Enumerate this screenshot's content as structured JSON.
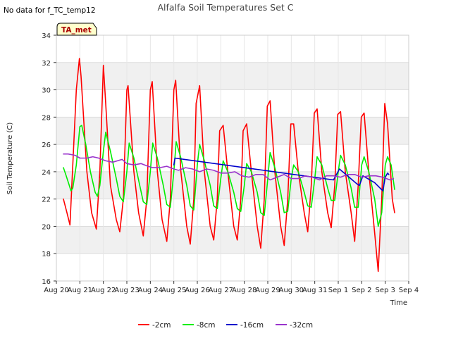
{
  "no_data_text": "No data for f_TC_temp12",
  "tag_label": "TA_met",
  "chart_data": {
    "type": "line",
    "title": "Alfalfa Soil Temperatures Set C",
    "xlabel": "Time",
    "ylabel": "Soil Temperature (C)",
    "xlim": [
      0,
      15
    ],
    "ylim": [
      16,
      34
    ],
    "grid": true,
    "legend_position": "bottom",
    "x_tick_values": [
      0,
      1,
      2,
      3,
      4,
      5,
      6,
      7,
      8,
      9,
      10,
      11,
      12,
      13,
      14,
      15
    ],
    "x_tick_labels": [
      "Aug 20",
      "Aug 21",
      "Aug 22",
      "Aug 23",
      "Aug 24",
      "Aug 25",
      "Aug 26",
      "Aug 27",
      "Aug 28",
      "Aug 29",
      "Aug 30",
      "Aug 31",
      "Sep 1",
      "Sep 2",
      "Sep 3",
      "Sep 4"
    ],
    "y_ticks": [
      16,
      18,
      20,
      22,
      24,
      26,
      28,
      30,
      32,
      34
    ],
    "series": [
      {
        "name": "-2cm",
        "color": "#ff0000",
        "x": [
          0.3,
          0.45,
          0.58,
          0.85,
          0.98,
          1.05,
          1.3,
          1.5,
          1.7,
          1.85,
          2.0,
          2.1,
          2.3,
          2.55,
          2.7,
          2.85,
          3.0,
          3.05,
          3.3,
          3.5,
          3.7,
          3.85,
          4.0,
          4.08,
          4.3,
          4.5,
          4.7,
          4.85,
          5.0,
          5.08,
          5.3,
          5.55,
          5.7,
          5.85,
          5.95,
          6.1,
          6.3,
          6.55,
          6.7,
          6.85,
          6.95,
          7.1,
          7.3,
          7.55,
          7.7,
          7.85,
          7.95,
          8.1,
          8.3,
          8.55,
          8.7,
          8.85,
          8.98,
          9.1,
          9.3,
          9.55,
          9.7,
          9.85,
          9.98,
          10.1,
          10.3,
          10.55,
          10.7,
          10.85,
          10.98,
          11.1,
          11.3,
          11.55,
          11.7,
          11.85,
          11.98,
          12.1,
          12.3,
          12.55,
          12.7,
          12.85,
          12.98,
          13.1,
          13.3,
          13.55,
          13.7,
          13.85,
          13.98,
          14.1,
          14.3,
          14.4
        ],
        "values": [
          22.0,
          21.0,
          20.1,
          30.0,
          32.3,
          31.0,
          24.0,
          21.0,
          19.8,
          24.0,
          31.8,
          29.0,
          23.0,
          20.5,
          19.6,
          22.0,
          30.0,
          30.3,
          24.0,
          21.0,
          19.3,
          22.0,
          30.0,
          30.6,
          24.0,
          20.5,
          18.9,
          22.0,
          30.0,
          30.7,
          24.0,
          20.0,
          18.7,
          22.0,
          29.0,
          30.3,
          24.0,
          20.0,
          19.0,
          22.0,
          27.0,
          27.4,
          24.0,
          20.0,
          19.0,
          22.0,
          27.0,
          27.5,
          24.0,
          20.0,
          18.4,
          22.0,
          28.8,
          29.2,
          24.0,
          20.0,
          18.6,
          22.0,
          27.5,
          27.5,
          24.0,
          21.0,
          19.6,
          23.0,
          28.3,
          28.6,
          24.0,
          21.0,
          19.9,
          23.0,
          28.2,
          28.4,
          24.0,
          21.0,
          18.9,
          23.0,
          28.0,
          28.3,
          24.0,
          19.5,
          16.7,
          22.0,
          29.0,
          27.5,
          22.0,
          21.0
        ]
      },
      {
        "name": "-8cm",
        "color": "#00ee00",
        "x": [
          0.3,
          0.4,
          0.55,
          0.62,
          0.7,
          0.85,
          1.0,
          1.08,
          1.25,
          1.45,
          1.65,
          1.75,
          1.85,
          2.0,
          2.1,
          2.3,
          2.55,
          2.7,
          2.85,
          3.0,
          3.1,
          3.3,
          3.55,
          3.7,
          3.85,
          4.0,
          4.1,
          4.3,
          4.55,
          4.7,
          4.85,
          5.0,
          5.1,
          5.3,
          5.55,
          5.7,
          5.85,
          6.0,
          6.1,
          6.3,
          6.55,
          6.7,
          6.85,
          7.0,
          7.1,
          7.3,
          7.55,
          7.7,
          7.85,
          8.0,
          8.1,
          8.3,
          8.55,
          8.7,
          8.85,
          9.0,
          9.1,
          9.3,
          9.55,
          9.7,
          9.85,
          10.0,
          10.1,
          10.3,
          10.55,
          10.7,
          10.85,
          11.0,
          11.1,
          11.3,
          11.55,
          11.7,
          11.85,
          12.0,
          12.1,
          12.3,
          12.55,
          12.7,
          12.85,
          13.0,
          13.1,
          13.3,
          13.55,
          13.7,
          13.85,
          14.0,
          14.1,
          14.25,
          14.4
        ],
        "values": [
          24.3,
          23.8,
          23.0,
          22.6,
          22.8,
          24.5,
          27.3,
          27.4,
          26.0,
          24.0,
          22.5,
          22.2,
          23.0,
          25.5,
          26.9,
          25.5,
          23.5,
          22.2,
          21.8,
          24.0,
          26.1,
          25.0,
          23.0,
          21.8,
          21.6,
          24.0,
          26.1,
          25.0,
          23.0,
          21.6,
          21.4,
          24.0,
          26.2,
          25.0,
          23.0,
          21.5,
          21.2,
          24.5,
          26.0,
          24.8,
          23.0,
          21.5,
          21.3,
          23.5,
          24.8,
          24.0,
          22.5,
          21.3,
          21.1,
          23.0,
          24.6,
          24.0,
          22.5,
          21.0,
          20.8,
          23.5,
          25.4,
          24.3,
          22.5,
          21.0,
          21.1,
          23.5,
          24.5,
          24.0,
          22.5,
          21.5,
          21.4,
          23.5,
          25.1,
          24.5,
          22.8,
          21.9,
          21.9,
          24.0,
          25.2,
          24.5,
          22.8,
          21.4,
          21.4,
          24.5,
          25.1,
          24.0,
          22.0,
          20.0,
          21.0,
          24.5,
          25.1,
          24.5,
          22.7
        ]
      },
      {
        "name": "-16cm",
        "color": "#0000cc",
        "x": [
          5.0,
          5.05,
          11.8,
          12.05,
          12.8,
          12.9,
          13.05,
          13.55,
          13.9,
          14.0,
          14.1,
          14.15
        ],
        "values": [
          24.5,
          25.0,
          23.4,
          24.2,
          23.1,
          23.0,
          23.7,
          23.2,
          22.6,
          23.6,
          23.9,
          23.8
        ]
      },
      {
        "name": "-32cm",
        "color": "#9933cc",
        "x": [
          0.3,
          0.5,
          0.8,
          1.0,
          1.3,
          1.55,
          1.8,
          2.1,
          2.4,
          2.8,
          3.0,
          3.3,
          3.6,
          3.9,
          4.1,
          4.4,
          4.7,
          5.0,
          5.2,
          5.5,
          5.8,
          6.1,
          6.4,
          6.7,
          7.0,
          7.3,
          7.6,
          7.9,
          8.2,
          8.5,
          8.8,
          9.1,
          9.4,
          9.7,
          10.0,
          10.3,
          10.6,
          10.9,
          11.2,
          11.5,
          11.8,
          12.1,
          12.4,
          12.7,
          13.0,
          13.3,
          13.6,
          13.9,
          14.2,
          14.35
        ],
        "values": [
          25.3,
          25.3,
          25.2,
          25.0,
          25.0,
          25.1,
          25.0,
          24.8,
          24.7,
          24.9,
          24.6,
          24.5,
          24.6,
          24.4,
          24.3,
          24.3,
          24.4,
          24.2,
          24.1,
          24.3,
          24.2,
          24.0,
          24.2,
          24.1,
          23.9,
          23.9,
          24.0,
          23.7,
          23.6,
          23.8,
          23.8,
          23.4,
          23.6,
          23.8,
          23.5,
          23.5,
          23.7,
          23.6,
          23.4,
          23.7,
          23.7,
          23.6,
          23.8,
          23.8,
          23.6,
          23.7,
          23.7,
          23.6,
          23.4,
          23.5
        ]
      }
    ]
  }
}
